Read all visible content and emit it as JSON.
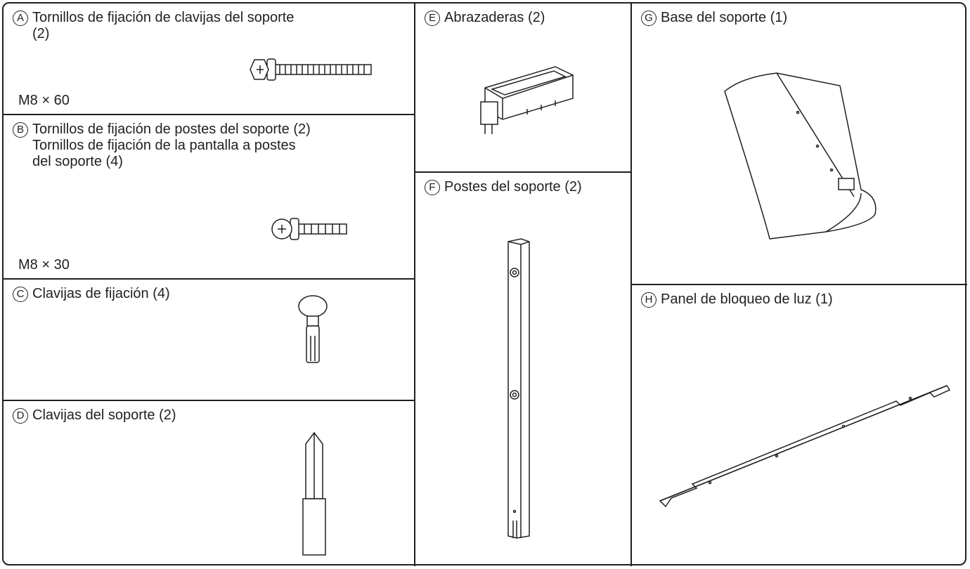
{
  "parts": [
    {
      "letter": "A",
      "names": [
        "Tornillos de fijación de clavijas del soporte  (2)"
      ],
      "spec": "M8 × 60"
    },
    {
      "letter": "B",
      "names": [
        "Tornillos de fijación de postes del soporte (2)",
        "Tornillos de fijación de la pantalla a postes del soporte (4)"
      ],
      "spec": "M8 × 30"
    },
    {
      "letter": "C",
      "names": [
        "Clavijas de fijación (4)"
      ]
    },
    {
      "letter": "D",
      "names": [
        "Clavijas del soporte (2)"
      ]
    },
    {
      "letter": "E",
      "names": [
        "Abrazaderas (2)"
      ]
    },
    {
      "letter": "F",
      "names": [
        "Postes del soporte (2)"
      ]
    },
    {
      "letter": "G",
      "names": [
        "Base del soporte (1)"
      ]
    },
    {
      "letter": "H",
      "names": [
        "Panel de bloqueo de luz (1)"
      ]
    }
  ]
}
